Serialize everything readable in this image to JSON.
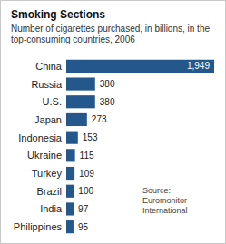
{
  "chart_data": {
    "type": "bar",
    "orientation": "horizontal",
    "title": "Smoking Sections",
    "subtitle": "Number of cigarettes purchased, in billions, in the top-consuming countries, 2006",
    "source": "Source: Euromonitor International",
    "categories": [
      "China",
      "Russia",
      "U.S.",
      "Japan",
      "Indonesia",
      "Ukraine",
      "Turkey",
      "Brazil",
      "India",
      "Philippines"
    ],
    "values": [
      1949,
      380,
      380,
      273,
      153,
      115,
      109,
      100,
      97,
      95
    ],
    "value_labels": [
      "1,949",
      "380",
      "380",
      "273",
      "153",
      "115",
      "109",
      "100",
      "97",
      "95"
    ],
    "color": "#24578c",
    "xlim": [
      0,
      1949
    ],
    "data_labels": true,
    "tick_labels": "y",
    "grid": false
  }
}
